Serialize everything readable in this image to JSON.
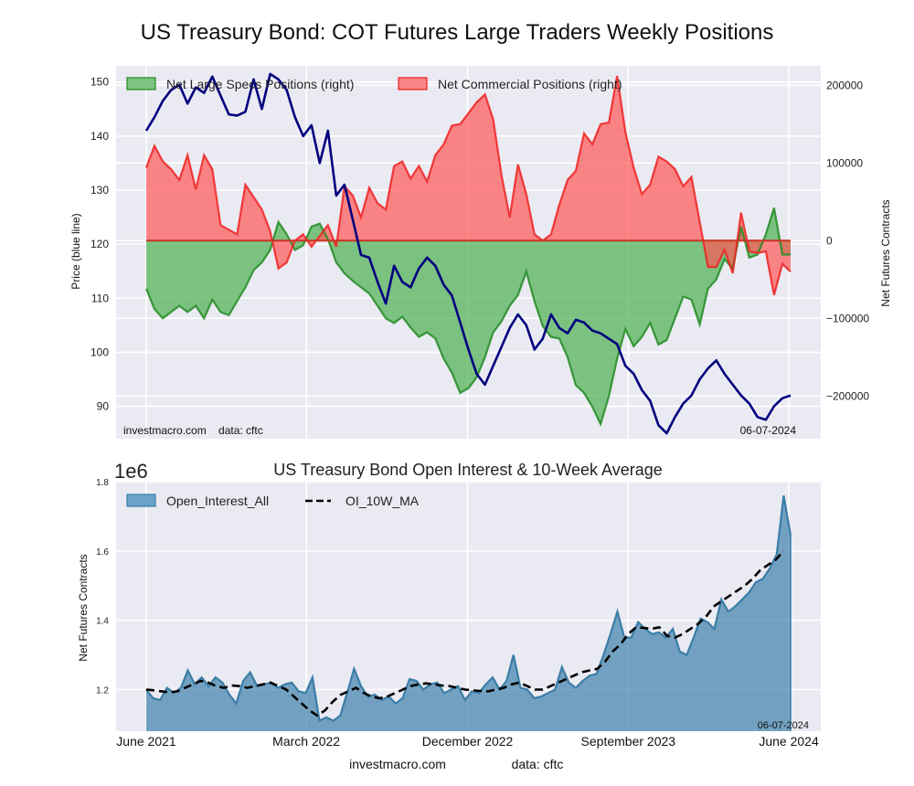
{
  "title": "US Treasury Bond: COT Futures Large Traders Weekly Positions",
  "chart_data": [
    {
      "type": "line",
      "title": "US Treasury Bond: COT Futures Large Traders Weekly Positions",
      "xlabel": "",
      "ylabel": "Price (blue line)",
      "ylabel_right": "Net Futures Contracts",
      "ylim": [
        84,
        153
      ],
      "ylim_right": [
        -255000,
        225000
      ],
      "yticks": [
        90,
        100,
        110,
        120,
        130,
        140,
        150
      ],
      "yticks_right": [
        -200000,
        -100000,
        0,
        100000,
        200000
      ],
      "ytick_labels_right": [
        "−200000",
        "−100000",
        "0",
        "100000",
        "200000"
      ],
      "grid": true,
      "legend_position": "top",
      "legend": [
        "Net Large Specs Positions (right)",
        "Net Commercial Positions (right)"
      ],
      "annotations": {
        "source": "investmacro.com    data: cftc",
        "date": "06-07-2024"
      },
      "x_start": "2021-06-01",
      "x_end": "2024-06-04",
      "x_step_weeks": 2,
      "series": [
        {
          "name": "Price",
          "color": "#00007f",
          "values": [
            141,
            143.5,
            146.5,
            148.5,
            149.5,
            146,
            149,
            148,
            151,
            147.5,
            144,
            143.8,
            144.5,
            150.5,
            145,
            151.5,
            150.5,
            148.5,
            143.5,
            140,
            142,
            135,
            141,
            129,
            131,
            124.5,
            118,
            117.5,
            113,
            109,
            116,
            113,
            112,
            115.5,
            117.5,
            116,
            112.5,
            110.5,
            105.5,
            100.5,
            96,
            94,
            97.5,
            101,
            104.5,
            107,
            105,
            100.5,
            102.5,
            107,
            104.5,
            103.5,
            106,
            105.5,
            104,
            103.5,
            102.5,
            101.5,
            97.5,
            96,
            93,
            91,
            86.5,
            85,
            88,
            90.5,
            92,
            95,
            97,
            98.5,
            96,
            94,
            92,
            90.5,
            88,
            87.5,
            90,
            91.5,
            92
          ]
        },
        {
          "name": "Net Large Specs Positions (right)",
          "color": "#228b22",
          "values": [
            -62000,
            -88000,
            -100000,
            -92000,
            -84000,
            -92000,
            -84000,
            -100000,
            -76000,
            -92000,
            -96000,
            -78000,
            -60000,
            -38000,
            -28000,
            -12000,
            24000,
            8000,
            -12000,
            -6000,
            18000,
            22000,
            2000,
            -28000,
            -42000,
            -52000,
            -60000,
            -68000,
            -84000,
            -100000,
            -106000,
            -98000,
            -112000,
            -124000,
            -118000,
            -126000,
            -152000,
            -170000,
            -196000,
            -190000,
            -176000,
            -150000,
            -118000,
            -104000,
            -84000,
            -70000,
            -40000,
            -78000,
            -110000,
            -124000,
            -126000,
            -150000,
            -186000,
            -196000,
            -214000,
            -236000,
            -200000,
            -152000,
            -114000,
            -136000,
            -124000,
            -106000,
            -134000,
            -128000,
            -100000,
            -72000,
            -76000,
            -108000,
            -62000,
            -50000,
            -24000,
            -36000,
            18000,
            -22000,
            -18000,
            8000,
            42000,
            -18000,
            -18000
          ]
        },
        {
          "name": "Net Commercial Positions (right)",
          "color": "#ee2222",
          "values": [
            94000,
            122000,
            102000,
            92000,
            78000,
            110000,
            66000,
            110000,
            92000,
            20000,
            14000,
            8000,
            72000,
            56000,
            40000,
            12000,
            -36000,
            -28000,
            0,
            8000,
            -8000,
            6000,
            20000,
            -8000,
            70000,
            58000,
            30000,
            68000,
            48000,
            40000,
            96000,
            102000,
            80000,
            96000,
            76000,
            110000,
            124000,
            148000,
            150000,
            164000,
            178000,
            188000,
            156000,
            84000,
            30000,
            98000,
            60000,
            8000,
            0,
            8000,
            46000,
            78000,
            90000,
            138000,
            124000,
            150000,
            152000,
            212000,
            140000,
            94000,
            60000,
            72000,
            108000,
            102000,
            92000,
            70000,
            82000,
            24000,
            -34000,
            -34000,
            -12000,
            -42000,
            36000,
            -14000,
            -16000,
            -14000,
            -70000,
            -30000,
            -40000
          ]
        }
      ]
    },
    {
      "type": "area",
      "title": "US Treasury Bond Open Interest & 10-Week Average",
      "xlabel": "",
      "ylabel": "Net Futures Contracts",
      "ylim": [
        1.08,
        1.8
      ],
      "y_scale_label": "1e6",
      "yticks": [
        1.2,
        1.4,
        1.6,
        1.8
      ],
      "grid": true,
      "legend_position": "top-left",
      "legend": [
        "Open_Interest_All",
        "OI_10W_MA"
      ],
      "xtick_labels": [
        "June 2021",
        "March 2022",
        "December 2022",
        "September 2023",
        "June 2024"
      ],
      "xtick_dates": [
        "2021-06-01",
        "2022-03-01",
        "2022-12-01",
        "2023-09-01",
        "2024-06-01"
      ],
      "annotations": {
        "date": "06-07-2024"
      },
      "x_start": "2021-06-01",
      "x_end": "2024-06-04",
      "x_step_weeks": 2,
      "series": [
        {
          "name": "Open_Interest_All",
          "color": "#3a7ea8",
          "values": [
            1.2,
            1.175,
            1.17,
            1.205,
            1.19,
            1.205,
            1.255,
            1.215,
            1.235,
            1.21,
            1.235,
            1.22,
            1.185,
            1.16,
            1.225,
            1.25,
            1.21,
            1.215,
            1.22,
            1.205,
            1.215,
            1.22,
            1.195,
            1.19,
            1.235,
            1.11,
            1.12,
            1.11,
            1.125,
            1.19,
            1.26,
            1.21,
            1.18,
            1.185,
            1.17,
            1.18,
            1.16,
            1.175,
            1.23,
            1.225,
            1.2,
            1.215,
            1.22,
            1.19,
            1.2,
            1.21,
            1.17,
            1.195,
            1.19,
            1.215,
            1.235,
            1.2,
            1.225,
            1.3,
            1.205,
            1.2,
            1.175,
            1.18,
            1.19,
            1.2,
            1.265,
            1.22,
            1.205,
            1.225,
            1.24,
            1.245,
            1.3,
            1.36,
            1.425,
            1.35,
            1.35,
            1.395,
            1.375,
            1.36,
            1.365,
            1.35,
            1.375,
            1.31,
            1.3,
            1.35,
            1.405,
            1.395,
            1.375,
            1.46,
            1.425,
            1.44,
            1.46,
            1.48,
            1.51,
            1.52,
            1.55,
            1.59,
            1.76,
            1.645
          ]
        },
        {
          "name": "OI_10W_MA",
          "color": "#000000",
          "values": [
            1.2,
            1.198,
            1.195,
            1.192,
            1.195,
            1.205,
            1.215,
            1.225,
            1.22,
            1.21,
            1.205,
            1.212,
            1.21,
            1.205,
            1.21,
            1.215,
            1.22,
            1.21,
            1.2,
            1.18,
            1.16,
            1.14,
            1.125,
            1.14,
            1.165,
            1.185,
            1.195,
            1.205,
            1.19,
            1.18,
            1.175,
            1.18,
            1.19,
            1.2,
            1.21,
            1.215,
            1.218,
            1.215,
            1.212,
            1.21,
            1.205,
            1.2,
            1.198,
            1.196,
            1.195,
            1.2,
            1.205,
            1.215,
            1.22,
            1.21,
            1.2,
            1.2,
            1.21,
            1.22,
            1.23,
            1.24,
            1.25,
            1.255,
            1.26,
            1.28,
            1.31,
            1.33,
            1.36,
            1.38,
            1.378,
            1.375,
            1.38,
            1.355,
            1.35,
            1.36,
            1.375,
            1.39,
            1.41,
            1.44,
            1.455,
            1.47,
            1.485,
            1.5,
            1.52,
            1.545,
            1.56,
            1.575,
            1.6
          ]
        }
      ]
    }
  ],
  "footer": {
    "site": "investmacro.com",
    "source": "data: cftc"
  }
}
